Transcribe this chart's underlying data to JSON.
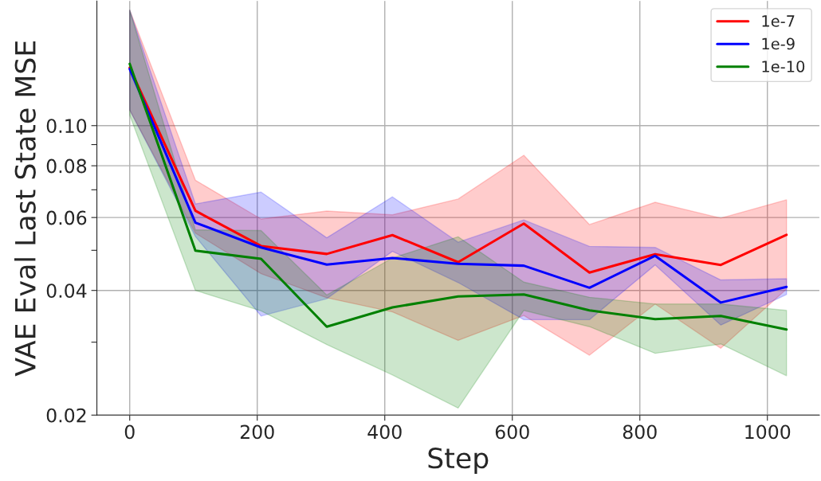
{
  "chart_data": {
    "type": "line",
    "xlabel": "Step",
    "ylabel": "VAE Eval Last State MSE",
    "x": [
      0,
      103,
      206,
      309,
      412,
      515,
      618,
      721,
      824,
      927,
      1030
    ],
    "series": [
      {
        "name": "1e-7",
        "color": "#ff0000",
        "values": [
          0.138,
          0.0623,
          0.0512,
          0.049,
          0.0544,
          0.0468,
          0.058,
          0.0442,
          0.0489,
          0.0461,
          0.0545
        ],
        "lower": [
          0.109,
          0.055,
          0.0439,
          0.0384,
          0.0355,
          0.0303,
          0.0348,
          0.0279,
          0.0371,
          0.029,
          0.0403
        ],
        "upper": [
          0.19,
          0.0738,
          0.0595,
          0.0622,
          0.0609,
          0.0665,
          0.0848,
          0.0577,
          0.0653,
          0.0598,
          0.0662
        ]
      },
      {
        "name": "1e-9",
        "color": "#0000ff",
        "values": [
          0.137,
          0.0583,
          0.0508,
          0.0462,
          0.0479,
          0.0464,
          0.0459,
          0.0406,
          0.0485,
          0.0374,
          0.0408
        ],
        "lower": [
          0.109,
          0.054,
          0.0347,
          0.0382,
          0.0497,
          0.0418,
          0.034,
          0.034,
          0.0461,
          0.033,
          0.0391
        ],
        "upper": [
          0.19,
          0.0647,
          0.0691,
          0.0536,
          0.0673,
          0.0523,
          0.0592,
          0.0511,
          0.0508,
          0.0424,
          0.0427
        ]
      },
      {
        "name": "1e-10",
        "color": "#008000",
        "values": [
          0.141,
          0.0499,
          0.0477,
          0.0327,
          0.0364,
          0.0387,
          0.0391,
          0.0358,
          0.0341,
          0.0347,
          0.0322
        ],
        "lower": [
          0.106,
          0.04,
          0.0357,
          0.0296,
          0.025,
          0.0208,
          0.0358,
          0.0327,
          0.0282,
          0.0297,
          0.0249
        ],
        "upper": [
          0.19,
          0.056,
          0.0558,
          0.039,
          0.0479,
          0.0539,
          0.0419,
          0.0385,
          0.0371,
          0.0371,
          0.0358
        ]
      }
    ],
    "log": "y",
    "xlim": [
      -51.5,
      1081.5
    ],
    "xticks": [
      0,
      200,
      400,
      600,
      800,
      1000
    ],
    "ylim": [
      0.02,
      0.2
    ],
    "yticks": [
      {
        "value": 0.02,
        "label": "0.02"
      },
      {
        "value": 0.03,
        "label": null
      },
      {
        "value": 0.04,
        "label": "0.04"
      },
      {
        "value": 0.05,
        "label": null
      },
      {
        "value": 0.06,
        "label": "0.06"
      },
      {
        "value": 0.07,
        "label": null
      },
      {
        "value": 0.08,
        "label": "0.08"
      },
      {
        "value": 0.09,
        "label": null
      },
      {
        "value": 0.1,
        "label": "0.10"
      }
    ],
    "grid": true,
    "legend": "top right",
    "marker": "none",
    "line_style": "solid"
  }
}
